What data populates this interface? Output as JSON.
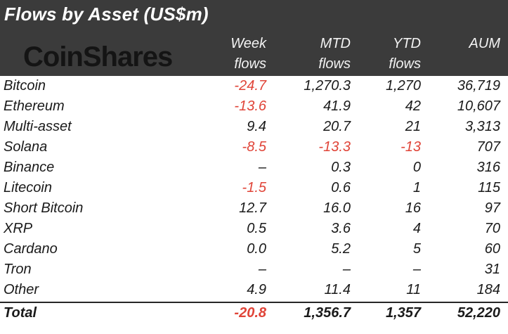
{
  "colors": {
    "headerBg": "#3b3b3b",
    "logo": "#141414",
    "text": "#1a1a1a",
    "negative": "#e04438"
  },
  "header": {
    "title": "Flows by Asset (US$m)",
    "logo": "CoinShares",
    "columns": [
      {
        "line1": "Week",
        "line2": "flows"
      },
      {
        "line1": "MTD",
        "line2": "flows"
      },
      {
        "line1": "YTD",
        "line2": "flows"
      },
      {
        "line1": "",
        "line2": "AUM"
      }
    ]
  },
  "table": {
    "rows": [
      {
        "name": "Bitcoin",
        "values": [
          "-24.7",
          "1,270.3",
          "1,270",
          "36,719"
        ]
      },
      {
        "name": "Ethereum",
        "values": [
          "-13.6",
          "41.9",
          "42",
          "10,607"
        ]
      },
      {
        "name": "Multi-asset",
        "values": [
          "9.4",
          "20.7",
          "21",
          "3,313"
        ]
      },
      {
        "name": "Solana",
        "values": [
          "-8.5",
          "-13.3",
          "-13",
          "707"
        ]
      },
      {
        "name": "Binance",
        "values": [
          "–",
          "0.3",
          "0",
          "316"
        ]
      },
      {
        "name": "Litecoin",
        "values": [
          "-1.5",
          "0.6",
          "1",
          "115"
        ]
      },
      {
        "name": "Short Bitcoin",
        "values": [
          "12.7",
          "16.0",
          "16",
          "97"
        ]
      },
      {
        "name": "XRP",
        "values": [
          "0.5",
          "3.6",
          "4",
          "70"
        ]
      },
      {
        "name": "Cardano",
        "values": [
          "0.0",
          "5.2",
          "5",
          "60"
        ]
      },
      {
        "name": "Tron",
        "values": [
          "–",
          "–",
          "–",
          "31"
        ]
      },
      {
        "name": "Other",
        "values": [
          "4.9",
          "11.4",
          "11",
          "184"
        ]
      }
    ],
    "total": {
      "name": "Total",
      "values": [
        "-20.8",
        "1,356.7",
        "1,357",
        "52,220"
      ]
    }
  },
  "chart_data": {
    "type": "table",
    "title": "Flows by Asset (US$m)",
    "columns": [
      "Asset",
      "Week flows",
      "MTD flows",
      "YTD flows",
      "AUM"
    ],
    "rows": [
      [
        "Bitcoin",
        -24.7,
        1270.3,
        1270,
        36719
      ],
      [
        "Ethereum",
        -13.6,
        41.9,
        42,
        10607
      ],
      [
        "Multi-asset",
        9.4,
        20.7,
        21,
        3313
      ],
      [
        "Solana",
        -8.5,
        -13.3,
        -13,
        707
      ],
      [
        "Binance",
        null,
        0.3,
        0,
        316
      ],
      [
        "Litecoin",
        -1.5,
        0.6,
        1,
        115
      ],
      [
        "Short Bitcoin",
        12.7,
        16.0,
        16,
        97
      ],
      [
        "XRP",
        0.5,
        3.6,
        4,
        70
      ],
      [
        "Cardano",
        0.0,
        5.2,
        5,
        60
      ],
      [
        "Tron",
        null,
        null,
        null,
        31
      ],
      [
        "Other",
        4.9,
        11.4,
        11,
        184
      ]
    ],
    "total": [
      "Total",
      -20.8,
      1356.7,
      1357,
      52220
    ],
    "notes": "Negative flow values rendered in red; en-dash shown where no data"
  }
}
